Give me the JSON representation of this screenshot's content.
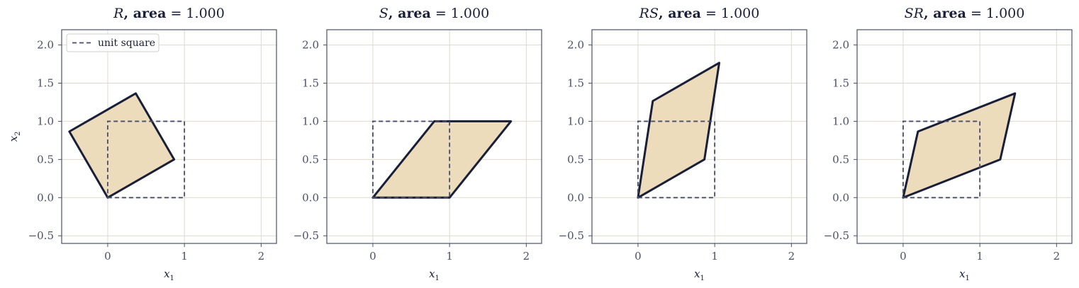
{
  "chart_data": [
    {
      "type": "area",
      "title_symbol": "R",
      "title_rest": ",  area  = 1.000",
      "xlabel_base": "x",
      "xlabel_sub": "1",
      "ylabel_base": "x",
      "ylabel_sub": "2",
      "xlim": [
        -0.6,
        2.2
      ],
      "ylim": [
        -0.6,
        2.2
      ],
      "xticks": [
        0,
        1,
        2
      ],
      "yticks": [
        -0.5,
        0.0,
        0.5,
        1.0,
        1.5,
        2.0
      ],
      "xtick_labels": [
        "0",
        "1",
        "2"
      ],
      "ytick_labels": [
        "−0.5",
        "0.0",
        "0.5",
        "1.0",
        "1.5",
        "2.0"
      ],
      "grid": true,
      "legend": {
        "entries": [
          "unit square"
        ],
        "placement": "top-left"
      },
      "unit_square": [
        [
          0,
          0
        ],
        [
          1,
          0
        ],
        [
          1,
          1
        ],
        [
          0,
          1
        ]
      ],
      "polygon": [
        [
          0,
          0
        ],
        [
          0.866,
          0.5
        ],
        [
          0.366,
          1.366
        ],
        [
          -0.5,
          0.866
        ]
      ]
    },
    {
      "type": "area",
      "title_symbol": "S",
      "title_rest": ",  area  = 1.000",
      "xlabel_base": "x",
      "xlabel_sub": "1",
      "xlim": [
        -0.6,
        2.2
      ],
      "ylim": [
        -0.6,
        2.2
      ],
      "xticks": [
        0,
        1,
        2
      ],
      "yticks": [
        -0.5,
        0.0,
        0.5,
        1.0,
        1.5,
        2.0
      ],
      "xtick_labels": [
        "0",
        "1",
        "2"
      ],
      "ytick_labels": [
        "−0.5",
        "0.0",
        "0.5",
        "1.0",
        "1.5",
        "2.0"
      ],
      "grid": true,
      "unit_square": [
        [
          0,
          0
        ],
        [
          1,
          0
        ],
        [
          1,
          1
        ],
        [
          0,
          1
        ]
      ],
      "polygon": [
        [
          0,
          0
        ],
        [
          1,
          0
        ],
        [
          1.8,
          1
        ],
        [
          0.8,
          1
        ]
      ]
    },
    {
      "type": "area",
      "title_symbol": "RS",
      "title_rest": ",  area  = 1.000",
      "xlabel_base": "x",
      "xlabel_sub": "1",
      "xlim": [
        -0.6,
        2.2
      ],
      "ylim": [
        -0.6,
        2.2
      ],
      "xticks": [
        0,
        1,
        2
      ],
      "yticks": [
        -0.5,
        0.0,
        0.5,
        1.0,
        1.5,
        2.0
      ],
      "xtick_labels": [
        "0",
        "1",
        "2"
      ],
      "ytick_labels": [
        "−0.5",
        "0.0",
        "0.5",
        "1.0",
        "1.5",
        "2.0"
      ],
      "grid": true,
      "unit_square": [
        [
          0,
          0
        ],
        [
          1,
          0
        ],
        [
          1,
          1
        ],
        [
          0,
          1
        ]
      ],
      "polygon": [
        [
          0,
          0
        ],
        [
          0.866,
          0.5
        ],
        [
          1.059,
          1.766
        ],
        [
          0.193,
          1.266
        ]
      ]
    },
    {
      "type": "area",
      "title_symbol": "SR",
      "title_rest": ",  area  = 1.000",
      "xlabel_base": "x",
      "xlabel_sub": "1",
      "xlim": [
        -0.6,
        2.2
      ],
      "ylim": [
        -0.6,
        2.2
      ],
      "xticks": [
        0,
        1,
        2
      ],
      "yticks": [
        -0.5,
        0.0,
        0.5,
        1.0,
        1.5,
        2.0
      ],
      "xtick_labels": [
        "0",
        "1",
        "2"
      ],
      "ytick_labels": [
        "−0.5",
        "0.0",
        "0.5",
        "1.0",
        "1.5",
        "2.0"
      ],
      "grid": true,
      "unit_square": [
        [
          0,
          0
        ],
        [
          1,
          0
        ],
        [
          1,
          1
        ],
        [
          0,
          1
        ]
      ],
      "polygon": [
        [
          0,
          0
        ],
        [
          1.266,
          0.5
        ],
        [
          1.459,
          1.366
        ],
        [
          0.193,
          0.866
        ]
      ]
    }
  ],
  "colors": {
    "fill": "#ecdcbc",
    "outline": "#1a1f38",
    "unit_square": "#454c6c",
    "grid": "#ddd9cc",
    "frame": "#4a5069",
    "tick_text": "#4a5069"
  }
}
